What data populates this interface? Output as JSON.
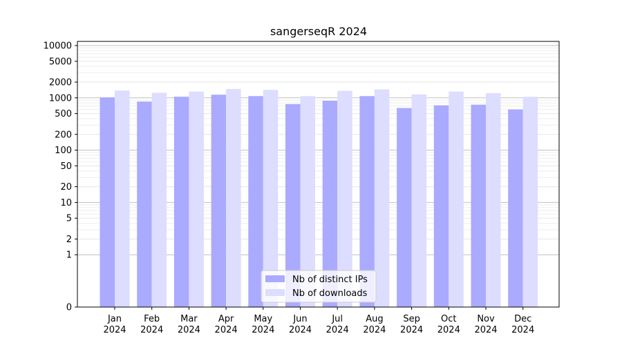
{
  "chart_data": {
    "type": "bar",
    "title": "sangerseqR 2024",
    "categories": [
      "Jan\n2024",
      "Feb\n2024",
      "Mar\n2024",
      "Apr\n2024",
      "May\n2024",
      "Jun\n2024",
      "Jul\n2024",
      "Aug\n2024",
      "Sep\n2024",
      "Oct\n2024",
      "Nov\n2024",
      "Dec\n2024"
    ],
    "series": [
      {
        "name": "Nb of distinct IPs",
        "color": "#aaaaff",
        "values": [
          1020,
          850,
          1050,
          1150,
          1080,
          760,
          880,
          1080,
          640,
          720,
          740,
          600
        ]
      },
      {
        "name": "Nb of downloads",
        "color": "#ddddff",
        "values": [
          1380,
          1250,
          1320,
          1480,
          1420,
          1080,
          1360,
          1450,
          1160,
          1320,
          1230,
          1050
        ]
      }
    ],
    "y_scale": "symlog",
    "ylim": [
      0,
      12000
    ],
    "y_ticks": [
      0,
      1,
      2,
      5,
      10,
      20,
      50,
      100,
      200,
      500,
      1000,
      2000,
      5000,
      10000
    ],
    "y_tick_labels": [
      "0",
      "1",
      "2",
      "5",
      "10",
      "20",
      "50",
      "100",
      "200",
      "500",
      "1000",
      "2000",
      "5000",
      "10000"
    ],
    "grid": true,
    "legend_position": "bottom-center"
  }
}
